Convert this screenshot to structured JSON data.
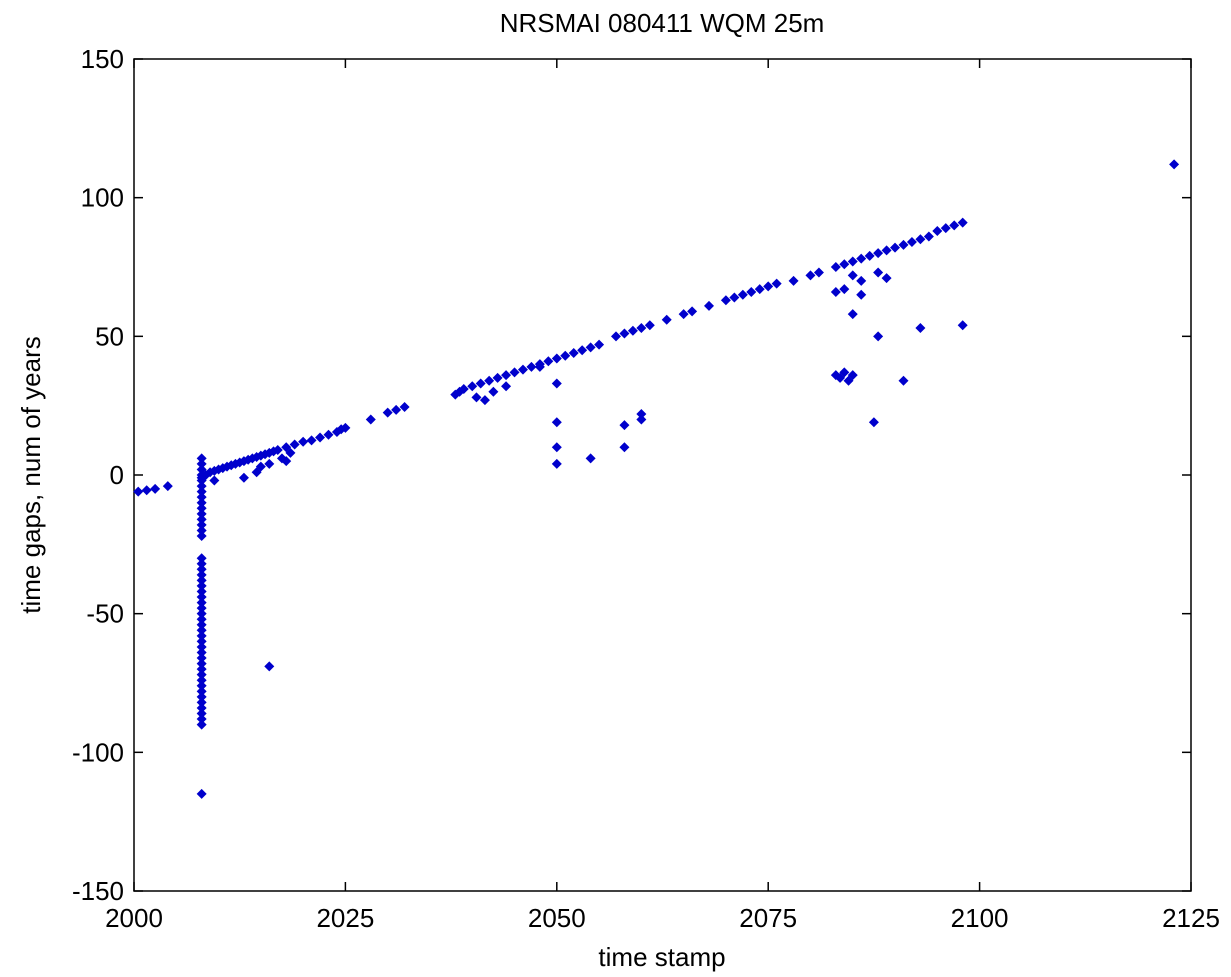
{
  "chart_data": {
    "type": "scatter",
    "title": "NRSMAI 080411 WQM 25m",
    "xlabel": "time stamp",
    "ylabel": "time gaps, num of years",
    "xlim": [
      2000,
      2125
    ],
    "ylim": [
      -150,
      150
    ],
    "xticks": [
      "2000",
      "2025",
      "2050",
      "2075",
      "2100",
      "2125"
    ],
    "yticks": [
      "150",
      "100",
      "50",
      "0",
      "-50",
      "-100",
      "-150"
    ],
    "grid": false,
    "marker": "diamond",
    "color": "#0000cc",
    "series": [
      {
        "points": [
          [
            2000.5,
            -6
          ],
          [
            2001.5,
            -5.5
          ],
          [
            2002.5,
            -5
          ],
          [
            2004,
            -4
          ],
          [
            2008,
            6
          ],
          [
            2008,
            4
          ],
          [
            2008,
            2
          ],
          [
            2008,
            0
          ],
          [
            2008,
            -1
          ],
          [
            2008,
            -2
          ],
          [
            2008,
            -4
          ],
          [
            2008,
            -6
          ],
          [
            2008,
            -8
          ],
          [
            2008,
            -10
          ],
          [
            2008,
            -12
          ],
          [
            2008,
            -14
          ],
          [
            2008,
            -16
          ],
          [
            2008,
            -18
          ],
          [
            2008,
            -20
          ],
          [
            2008,
            -22
          ],
          [
            2008,
            -30
          ],
          [
            2008,
            -32
          ],
          [
            2008,
            -34
          ],
          [
            2008,
            -36
          ],
          [
            2008,
            -38
          ],
          [
            2008,
            -40
          ],
          [
            2008,
            -42
          ],
          [
            2008,
            -44
          ],
          [
            2008,
            -46
          ],
          [
            2008,
            -48
          ],
          [
            2008,
            -50
          ],
          [
            2008,
            -52
          ],
          [
            2008,
            -54
          ],
          [
            2008,
            -56
          ],
          [
            2008,
            -58
          ],
          [
            2008,
            -60
          ],
          [
            2008,
            -62
          ],
          [
            2008,
            -64
          ],
          [
            2008,
            -66
          ],
          [
            2008,
            -68
          ],
          [
            2008,
            -70
          ],
          [
            2008,
            -72
          ],
          [
            2008,
            -74
          ],
          [
            2008,
            -76
          ],
          [
            2008,
            -78
          ],
          [
            2008,
            -80
          ],
          [
            2008,
            -82
          ],
          [
            2008,
            -84
          ],
          [
            2008,
            -86
          ],
          [
            2008,
            -88
          ],
          [
            2008,
            -90
          ],
          [
            2008,
            -115
          ],
          [
            2008.5,
            0
          ],
          [
            2009,
            1
          ],
          [
            2009.5,
            1.5
          ],
          [
            2010,
            2
          ],
          [
            2010.5,
            2.5
          ],
          [
            2011,
            3
          ],
          [
            2011.5,
            3.5
          ],
          [
            2012,
            4
          ],
          [
            2012.5,
            4.5
          ],
          [
            2013,
            5
          ],
          [
            2013.5,
            5.5
          ],
          [
            2014,
            6
          ],
          [
            2014.5,
            6.5
          ],
          [
            2015,
            7
          ],
          [
            2015.5,
            7.5
          ],
          [
            2016,
            8
          ],
          [
            2016.5,
            8.5
          ],
          [
            2017,
            9
          ],
          [
            2009.5,
            -2
          ],
          [
            2013,
            -1
          ],
          [
            2014.5,
            1
          ],
          [
            2015,
            3
          ],
          [
            2016,
            4
          ],
          [
            2017.5,
            6
          ],
          [
            2018,
            5
          ],
          [
            2018.5,
            8
          ],
          [
            2018,
            10
          ],
          [
            2019,
            11
          ],
          [
            2020,
            12
          ],
          [
            2021,
            12.5
          ],
          [
            2022,
            13.5
          ],
          [
            2023,
            14.5
          ],
          [
            2024,
            15.5
          ],
          [
            2024.5,
            16.5
          ],
          [
            2025,
            17
          ],
          [
            2016,
            -69
          ],
          [
            2028,
            20
          ],
          [
            2030,
            22.5
          ],
          [
            2031,
            23.5
          ],
          [
            2032,
            24.5
          ],
          [
            2038,
            29
          ],
          [
            2038.5,
            30
          ],
          [
            2039,
            31
          ],
          [
            2040,
            32
          ],
          [
            2041,
            33
          ],
          [
            2042,
            34
          ],
          [
            2043,
            35
          ],
          [
            2044,
            36
          ],
          [
            2045,
            37
          ],
          [
            2046,
            38
          ],
          [
            2047,
            39
          ],
          [
            2048,
            40
          ],
          [
            2049,
            41
          ],
          [
            2050,
            42
          ],
          [
            2051,
            43
          ],
          [
            2052,
            44
          ],
          [
            2053,
            45
          ],
          [
            2054,
            46
          ],
          [
            2055,
            47
          ],
          [
            2040.5,
            28
          ],
          [
            2041.5,
            27
          ],
          [
            2042.5,
            30
          ],
          [
            2044,
            32
          ],
          [
            2048,
            39
          ],
          [
            2050,
            33
          ],
          [
            2050,
            19
          ],
          [
            2050,
            10
          ],
          [
            2050,
            4
          ],
          [
            2054,
            6
          ],
          [
            2057,
            50
          ],
          [
            2058,
            51
          ],
          [
            2059,
            52
          ],
          [
            2060,
            53
          ],
          [
            2061,
            54
          ],
          [
            2063,
            56
          ],
          [
            2065,
            58
          ],
          [
            2066,
            59
          ],
          [
            2068,
            61
          ],
          [
            2070,
            63
          ],
          [
            2071,
            64
          ],
          [
            2072,
            65
          ],
          [
            2073,
            66
          ],
          [
            2074,
            67
          ],
          [
            2075,
            68
          ],
          [
            2076,
            69
          ],
          [
            2078,
            70
          ],
          [
            2080,
            72
          ],
          [
            2081,
            73
          ],
          [
            2058,
            18
          ],
          [
            2058,
            10
          ],
          [
            2060,
            20
          ],
          [
            2060,
            22
          ],
          [
            2083,
            75
          ],
          [
            2084,
            76
          ],
          [
            2085,
            77
          ],
          [
            2086,
            78
          ],
          [
            2087,
            79
          ],
          [
            2088,
            80
          ],
          [
            2089,
            81
          ],
          [
            2090,
            82
          ],
          [
            2091,
            83
          ],
          [
            2092,
            84
          ],
          [
            2093,
            85
          ],
          [
            2094,
            86
          ],
          [
            2095,
            88
          ],
          [
            2096,
            89
          ],
          [
            2097,
            90
          ],
          [
            2098,
            91
          ],
          [
            2083,
            66
          ],
          [
            2084,
            67
          ],
          [
            2085,
            72
          ],
          [
            2086,
            70
          ],
          [
            2086,
            65
          ],
          [
            2085,
            58
          ],
          [
            2088,
            73
          ],
          [
            2089,
            71
          ],
          [
            2088,
            50
          ],
          [
            2093,
            53
          ],
          [
            2083,
            36
          ],
          [
            2083.5,
            35
          ],
          [
            2084,
            37
          ],
          [
            2084.5,
            34
          ],
          [
            2085,
            36
          ],
          [
            2091,
            34
          ],
          [
            2087.5,
            19
          ],
          [
            2098,
            54
          ],
          [
            2123,
            112
          ]
        ]
      }
    ]
  }
}
